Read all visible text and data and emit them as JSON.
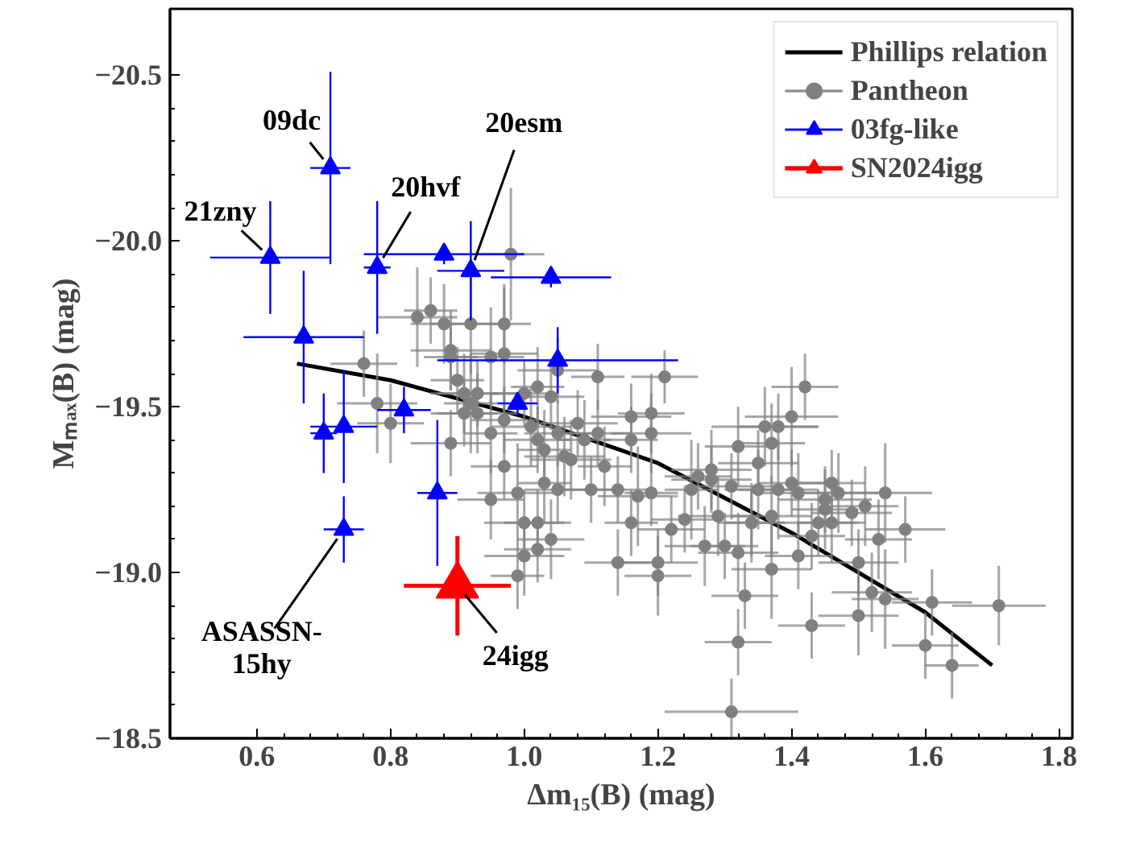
{
  "chart_data": {
    "type": "scatter",
    "xlabel": "Δm₁₅(B) (mag)",
    "ylabel": "Mₘₐₓ(B) (mag)",
    "xlim": [
      0.47,
      1.82
    ],
    "ylim": [
      -18.5,
      -20.7
    ],
    "xticks": [
      {
        "value": 0.6,
        "label": "0.6"
      },
      {
        "value": 0.8,
        "label": "0.8"
      },
      {
        "value": 1.0,
        "label": "1.0"
      },
      {
        "value": 1.2,
        "label": "1.2"
      },
      {
        "value": 1.4,
        "label": "1.4"
      },
      {
        "value": 1.6,
        "label": "1.6"
      },
      {
        "value": 1.8,
        "label": "1.8"
      }
    ],
    "yticks": [
      {
        "value": -20.5,
        "label": "−20.5"
      },
      {
        "value": -20.0,
        "label": "−20.0"
      },
      {
        "value": -19.5,
        "label": "−19.5"
      },
      {
        "value": -19.0,
        "label": "−19.0"
      },
      {
        "value": -18.5,
        "label": "−18.5"
      }
    ],
    "grid": false,
    "legend": "top right",
    "series": [
      {
        "name": "Phillips relation",
        "type": "line",
        "color": "#000000",
        "line_style": "solid",
        "x": [
          0.66,
          0.8,
          1.0,
          1.2,
          1.4,
          1.6,
          1.7
        ],
        "values": [
          -19.63,
          -19.58,
          -19.47,
          -19.33,
          -19.12,
          -18.88,
          -18.72
        ]
      },
      {
        "name": "Pantheon",
        "color": "#808080",
        "marker": "circle",
        "x": [
          0.98,
          0.84,
          0.86,
          0.88,
          0.92,
          0.97,
          0.76,
          0.89,
          0.89,
          0.95,
          0.97,
          1.05,
          1.11,
          1.21,
          0.78,
          0.8,
          0.9,
          0.91,
          0.93,
          0.92,
          0.91,
          0.93,
          1.0,
          1.02,
          1.04,
          0.89,
          0.95,
          0.97,
          1.01,
          1.02,
          1.03,
          1.05,
          1.08,
          1.09,
          1.11,
          1.16,
          1.19,
          1.16,
          0.97,
          0.99,
          1.03,
          1.05,
          1.07,
          1.1,
          1.12,
          1.14,
          1.17,
          1.19,
          0.95,
          1.0,
          1.04,
          1.25,
          1.32,
          1.28,
          1.34,
          1.02,
          1.0,
          1.02,
          0.99,
          1.14,
          1.06,
          1.16,
          1.42,
          1.19,
          1.4,
          1.36,
          1.38,
          1.37,
          1.35,
          1.26,
          1.28,
          1.31,
          1.35,
          1.38,
          1.4,
          1.41,
          1.46,
          1.47,
          1.45,
          1.45,
          1.44,
          1.46,
          1.49,
          1.51,
          1.54,
          1.24,
          1.29,
          1.34,
          1.37,
          1.22,
          1.27,
          1.3,
          1.32,
          1.43,
          1.57,
          1.53,
          1.2,
          1.2,
          1.37,
          1.41,
          1.5,
          1.33,
          1.52,
          1.54,
          1.61,
          1.71,
          1.43,
          1.5,
          1.32,
          1.6,
          1.64,
          1.31
        ],
        "values": [
          -19.96,
          -19.77,
          -19.79,
          -19.75,
          -19.75,
          -19.75,
          -19.63,
          -19.67,
          -19.65,
          -19.65,
          -19.66,
          -19.61,
          -19.59,
          -19.59,
          -19.51,
          -19.45,
          -19.58,
          -19.54,
          -19.54,
          -19.51,
          -19.48,
          -19.48,
          -19.54,
          -19.56,
          -19.53,
          -19.39,
          -19.42,
          -19.46,
          -19.44,
          -19.4,
          -19.37,
          -19.42,
          -19.45,
          -19.4,
          -19.42,
          -19.47,
          -19.48,
          -19.4,
          -19.32,
          -19.24,
          -19.27,
          -19.25,
          -19.34,
          -19.25,
          -19.32,
          -19.25,
          -19.23,
          -19.24,
          -19.22,
          -19.15,
          -19.1,
          -19.25,
          -19.38,
          -19.28,
          -19.15,
          -19.15,
          -19.05,
          -19.07,
          -18.99,
          -19.03,
          -19.35,
          -19.15,
          -19.56,
          -19.42,
          -19.47,
          -19.44,
          -19.44,
          -19.39,
          -19.33,
          -19.29,
          -19.31,
          -19.26,
          -19.25,
          -19.25,
          -19.27,
          -19.24,
          -19.27,
          -19.24,
          -19.22,
          -19.19,
          -19.15,
          -19.15,
          -19.18,
          -19.2,
          -19.24,
          -19.16,
          -19.17,
          -19.15,
          -19.17,
          -19.13,
          -19.08,
          -19.08,
          -19.06,
          -19.11,
          -19.13,
          -19.1,
          -19.03,
          -18.99,
          -19.01,
          -19.05,
          -19.03,
          -18.93,
          -18.94,
          -18.92,
          -18.91,
          -18.9,
          -18.84,
          -18.87,
          -18.79,
          -18.78,
          -18.72,
          -18.58
        ],
        "errors": [
          0.2,
          0.15,
          0.1,
          0.12,
          0.15,
          0.12,
          0.1,
          0.12,
          0.1,
          0.15,
          0.2,
          0.1,
          0.1,
          0.08,
          0.15,
          0.12,
          0.1,
          0.12,
          0.1,
          0.15,
          0.1,
          0.12,
          0.1,
          0.12,
          0.1,
          0.1,
          0.12,
          0.1,
          0.12,
          0.1,
          0.12,
          0.1,
          0.1,
          0.12,
          0.1,
          0.1,
          0.12,
          0.1,
          0.1,
          0.15,
          0.12,
          0.1,
          0.12,
          0.1,
          0.12,
          0.1,
          0.15,
          0.1,
          0.12,
          0.1,
          0.12,
          0.15,
          0.12,
          0.1,
          0.12,
          0.1,
          0.12,
          0.1,
          0.1,
          0.1,
          0.12,
          0.1,
          0.1,
          0.12,
          0.15,
          0.12,
          0.1,
          0.12,
          0.1,
          0.1,
          0.12,
          0.1,
          0.12,
          0.15,
          0.1,
          0.12,
          0.1,
          0.12,
          0.1,
          0.12,
          0.1,
          0.12,
          0.1,
          0.12,
          0.15,
          0.1,
          0.12,
          0.1,
          0.12,
          0.1,
          0.12,
          0.1,
          0.12,
          0.1,
          0.1,
          0.12,
          0.1,
          0.12,
          0.15,
          0.1,
          0.1,
          0.1,
          0.12,
          0.15,
          0.1,
          0.12,
          0.1,
          0.12,
          0.1,
          0.1,
          0.1,
          0.1
        ],
        "xerrors": [
          0.05,
          0.06,
          0.04,
          0.05,
          0.06,
          0.04,
          0.05,
          0.06,
          0.04,
          0.05,
          0.05,
          0.06,
          0.04,
          0.05,
          0.06,
          0.05,
          0.04,
          0.05,
          0.06,
          0.04,
          0.05,
          0.06,
          0.05,
          0.04,
          0.05,
          0.06,
          0.04,
          0.05,
          0.06,
          0.05,
          0.04,
          0.05,
          0.06,
          0.04,
          0.05,
          0.06,
          0.05,
          0.04,
          0.05,
          0.06,
          0.04,
          0.05,
          0.06,
          0.05,
          0.04,
          0.05,
          0.06,
          0.04,
          0.05,
          0.06,
          0.05,
          0.04,
          0.05,
          0.06,
          0.04,
          0.05,
          0.06,
          0.05,
          0.04,
          0.05,
          0.06,
          0.04,
          0.05,
          0.06,
          0.07,
          0.08,
          0.06,
          0.05,
          0.06,
          0.05,
          0.06,
          0.07,
          0.05,
          0.06,
          0.05,
          0.06,
          0.05,
          0.06,
          0.07,
          0.05,
          0.06,
          0.05,
          0.06,
          0.05,
          0.07,
          0.05,
          0.06,
          0.05,
          0.06,
          0.05,
          0.06,
          0.05,
          0.06,
          0.05,
          0.06,
          0.05,
          0.06,
          0.05,
          0.06,
          0.05,
          0.06,
          0.05,
          0.06,
          0.05,
          0.06,
          0.07,
          0.05,
          0.06,
          0.05,
          0.05,
          0.04,
          0.1
        ]
      },
      {
        "name": "03fg-like",
        "color": "#0000ff",
        "marker": "triangle",
        "x": [
          0.62,
          0.71,
          0.78,
          0.88,
          0.92,
          1.04,
          0.67,
          1.05,
          0.7,
          0.73,
          0.82,
          0.99,
          0.87,
          0.73
        ],
        "values": [
          -19.95,
          -20.22,
          -19.92,
          -19.96,
          -19.91,
          -19.89,
          -19.71,
          -19.64,
          -19.42,
          -19.44,
          -19.49,
          -19.51,
          -19.24,
          -19.13
        ],
        "errors": [
          0.17,
          0.29,
          0.2,
          0.03,
          0.15,
          0.03,
          0.2,
          0.1,
          0.12,
          0.17,
          0.07,
          0.03,
          0.22,
          0.1
        ],
        "xerrors": [
          0.09,
          0.03,
          0.02,
          0.12,
          0.05,
          0.09,
          0.09,
          0.18,
          0.02,
          0.05,
          0.04,
          0.03,
          0.03,
          0.03
        ]
      },
      {
        "name": "SN2024igg",
        "color": "#ff0000",
        "marker": "triangle",
        "x": [
          0.9
        ],
        "values": [
          -18.96
        ],
        "errors": [
          0.15
        ],
        "xerrors": [
          0.08
        ]
      }
    ],
    "annotations": [
      {
        "text": "21zny",
        "x": 0.62,
        "y": -19.95
      },
      {
        "text": "09dc",
        "x": 0.71,
        "y": -20.22
      },
      {
        "text": "20hvf",
        "x": 0.78,
        "y": -19.92
      },
      {
        "text": "20esm",
        "x": 0.92,
        "y": -19.91
      },
      {
        "text": "ASASSN-\n15hy",
        "x": 0.73,
        "y": -19.13
      },
      {
        "text": "24igg",
        "x": 0.9,
        "y": -18.96
      }
    ]
  }
}
